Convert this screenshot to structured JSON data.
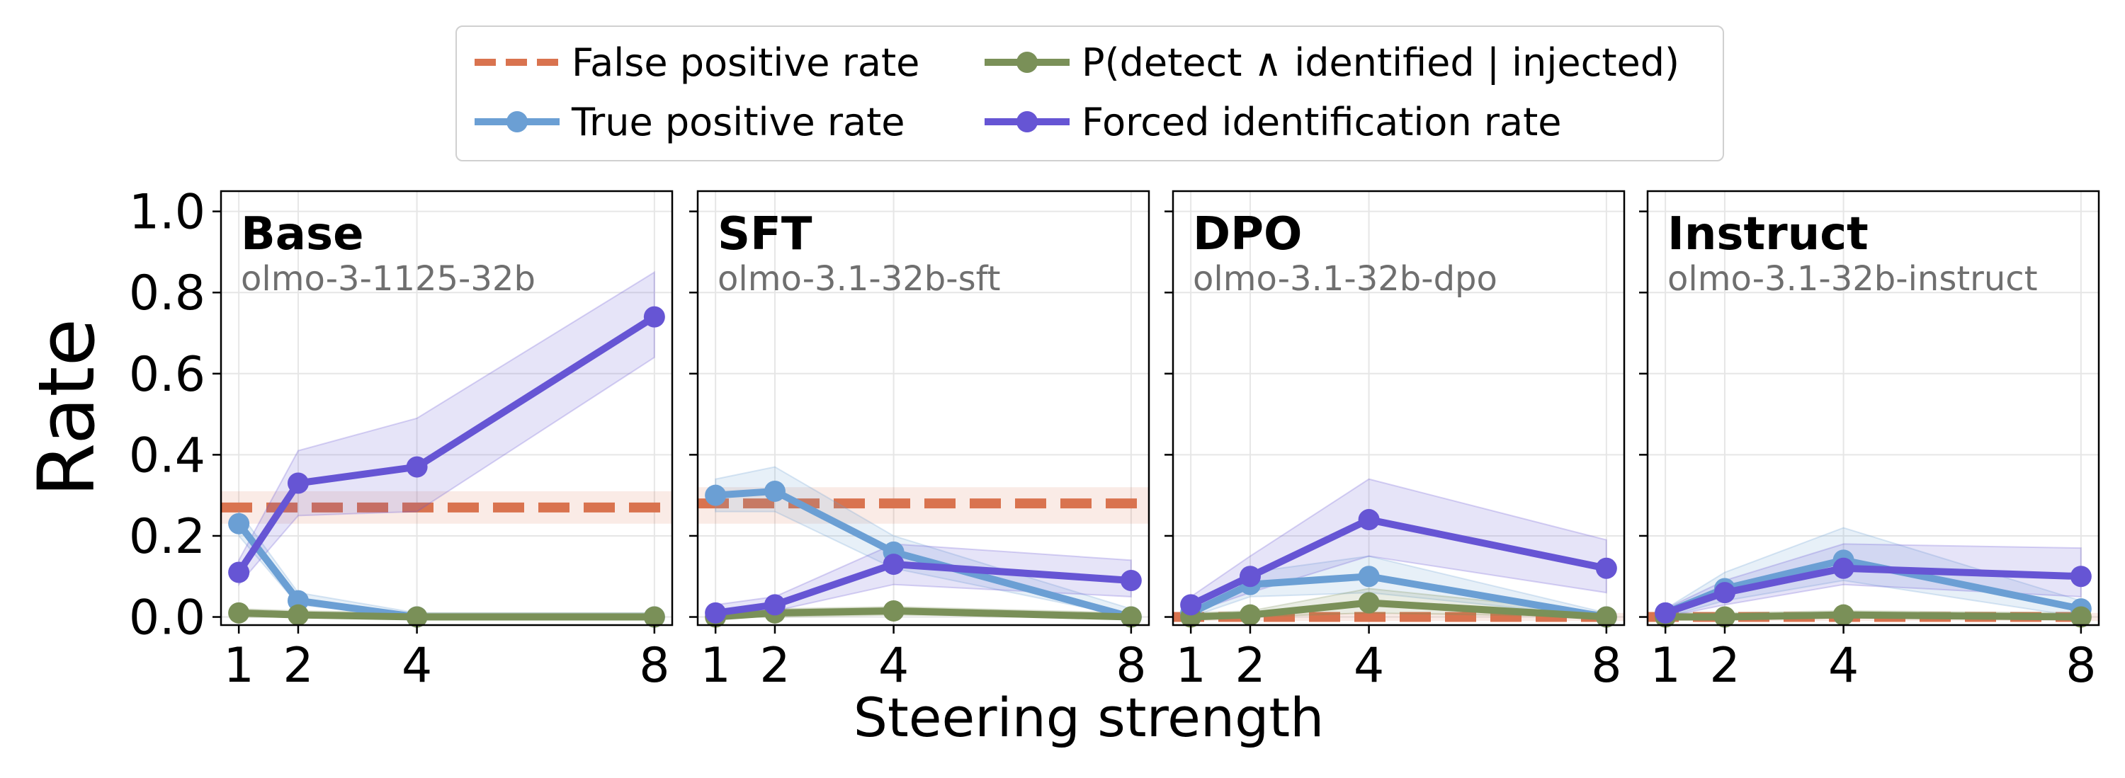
{
  "legend": {
    "fpr": "False positive rate",
    "tpr": "True positive rate",
    "pdi": "P(detect ∧ identified | injected)",
    "fir": "Forced identification rate"
  },
  "colors": {
    "fpr": "#d9734f",
    "tpr": "#6b9fd4",
    "pdi": "#7a9058",
    "fir": "#6655d4"
  },
  "chart_data": {
    "type": "line",
    "ylabel": "Rate",
    "xlabel": "Steering strength",
    "x": [
      1,
      2,
      4,
      8
    ],
    "xlim": [
      0.7,
      8.3
    ],
    "ylim": [
      -0.02,
      1.05
    ],
    "yticks": [
      "0.0",
      "0.2",
      "0.4",
      "0.6",
      "0.8",
      "1.0"
    ],
    "xticks": [
      "1",
      "2",
      "4",
      "8"
    ],
    "grid": true,
    "legend_position": "top-center",
    "panels": [
      {
        "title": "Base",
        "subtitle": "olmo-3-1125-32b",
        "fpr": 0.27,
        "fpr_band": [
          0.23,
          0.31
        ],
        "series": [
          {
            "key": "tpr",
            "name": "True positive rate",
            "values": [
              0.23,
              0.04,
              0.0,
              0.0
            ],
            "lower": [
              0.2,
              0.03,
              0.0,
              0.0
            ],
            "upper": [
              0.26,
              0.06,
              0.01,
              0.01
            ]
          },
          {
            "key": "pdi",
            "name": "P(detect ∧ identified | injected)",
            "values": [
              0.01,
              0.005,
              0.0,
              0.0
            ],
            "lower": [
              0.0,
              0.0,
              0.0,
              0.0
            ],
            "upper": [
              0.02,
              0.015,
              0.01,
              0.01
            ]
          },
          {
            "key": "fir",
            "name": "Forced identification rate",
            "values": [
              0.11,
              0.33,
              0.37,
              0.74
            ],
            "lower": [
              0.08,
              0.25,
              0.26,
              0.64
            ],
            "upper": [
              0.14,
              0.41,
              0.49,
              0.85
            ]
          }
        ]
      },
      {
        "title": "SFT",
        "subtitle": "olmo-3.1-32b-sft",
        "fpr": 0.28,
        "fpr_band": [
          0.23,
          0.32
        ],
        "series": [
          {
            "key": "tpr",
            "name": "True positive rate",
            "values": [
              0.3,
              0.31,
              0.16,
              0.0
            ],
            "lower": [
              0.26,
              0.26,
              0.12,
              0.0
            ],
            "upper": [
              0.34,
              0.37,
              0.2,
              0.02
            ]
          },
          {
            "key": "pdi",
            "name": "P(detect ∧ identified | injected)",
            "values": [
              0.0,
              0.01,
              0.015,
              0.0
            ],
            "lower": [
              0.0,
              0.0,
              0.005,
              0.0
            ],
            "upper": [
              0.01,
              0.02,
              0.025,
              0.01
            ]
          },
          {
            "key": "fir",
            "name": "Forced identification rate",
            "values": [
              0.01,
              0.03,
              0.13,
              0.09
            ],
            "lower": [
              0.0,
              0.015,
              0.08,
              0.05
            ],
            "upper": [
              0.03,
              0.05,
              0.18,
              0.14
            ]
          }
        ]
      },
      {
        "title": "DPO",
        "subtitle": "olmo-3.1-32b-dpo",
        "fpr": 0.0,
        "fpr_band": [
          -0.01,
          0.01
        ],
        "series": [
          {
            "key": "tpr",
            "name": "True positive rate",
            "values": [
              0.01,
              0.08,
              0.1,
              0.0
            ],
            "lower": [
              0.0,
              0.05,
              0.06,
              0.0
            ],
            "upper": [
              0.02,
              0.11,
              0.15,
              0.01
            ]
          },
          {
            "key": "pdi",
            "name": "P(detect ∧ identified | injected)",
            "values": [
              0.0,
              0.005,
              0.035,
              0.0
            ],
            "lower": [
              0.0,
              0.0,
              0.01,
              0.0
            ],
            "upper": [
              0.01,
              0.015,
              0.07,
              0.01
            ]
          },
          {
            "key": "fir",
            "name": "Forced identification rate",
            "values": [
              0.03,
              0.1,
              0.24,
              0.12
            ],
            "lower": [
              0.01,
              0.06,
              0.15,
              0.06
            ],
            "upper": [
              0.05,
              0.15,
              0.34,
              0.19
            ]
          }
        ]
      },
      {
        "title": "Instruct",
        "subtitle": "olmo-3.1-32b-instruct",
        "fpr": 0.0,
        "fpr_band": [
          -0.01,
          0.01
        ],
        "series": [
          {
            "key": "tpr",
            "name": "True positive rate",
            "values": [
              0.01,
              0.07,
              0.14,
              0.02
            ],
            "lower": [
              0.0,
              0.04,
              0.09,
              0.0
            ],
            "upper": [
              0.02,
              0.11,
              0.22,
              0.04
            ]
          },
          {
            "key": "pdi",
            "name": "P(detect ∧ identified | injected)",
            "values": [
              0.0,
              0.0,
              0.005,
              0.0
            ],
            "lower": [
              0.0,
              0.0,
              0.0,
              0.0
            ],
            "upper": [
              0.01,
              0.01,
              0.015,
              0.01
            ]
          },
          {
            "key": "fir",
            "name": "Forced identification rate",
            "values": [
              0.01,
              0.06,
              0.12,
              0.1
            ],
            "lower": [
              0.0,
              0.03,
              0.08,
              0.05
            ],
            "upper": [
              0.02,
              0.09,
              0.18,
              0.17
            ]
          }
        ]
      }
    ]
  }
}
